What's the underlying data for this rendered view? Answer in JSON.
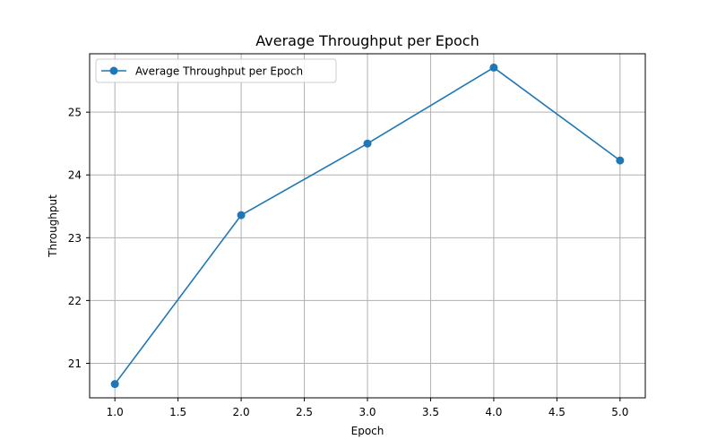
{
  "chart_data": {
    "type": "line",
    "title": "Average Throughput per Epoch",
    "xlabel": "Epoch",
    "ylabel": "Throughput",
    "x": [
      1.0,
      2.0,
      3.0,
      4.0,
      5.0
    ],
    "series": [
      {
        "name": "Average Throughput per Epoch",
        "values": [
          20.67,
          23.36,
          24.5,
          25.71,
          24.23
        ],
        "color": "#1f77b4",
        "marker": "circle"
      }
    ],
    "xlim": [
      0.8,
      5.2
    ],
    "ylim": [
      20.45,
      25.93
    ],
    "xticks": [
      1.0,
      1.5,
      2.0,
      2.5,
      3.0,
      3.5,
      4.0,
      4.5,
      5.0
    ],
    "xtick_labels": [
      "1.0",
      "1.5",
      "2.0",
      "2.5",
      "3.0",
      "3.5",
      "4.0",
      "4.5",
      "5.0"
    ],
    "yticks": [
      21,
      22,
      23,
      24,
      25
    ],
    "ytick_labels": [
      "21",
      "22",
      "23",
      "24",
      "25"
    ],
    "grid": true,
    "legend_position": "upper-left"
  }
}
